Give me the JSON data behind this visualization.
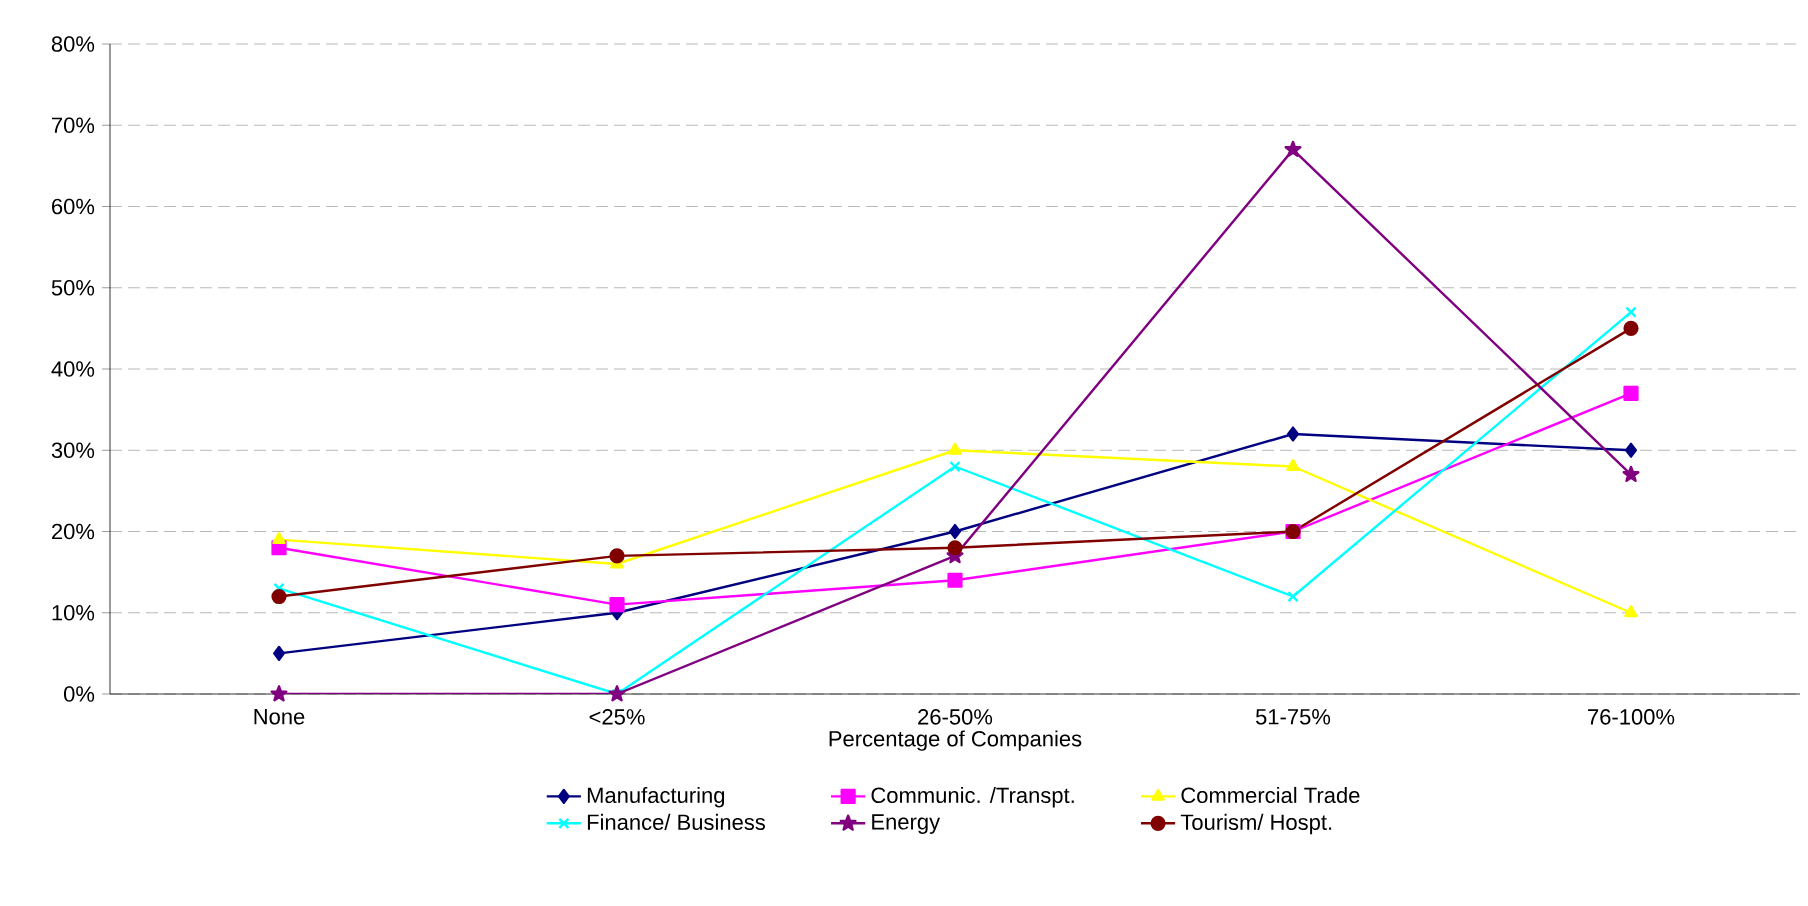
{
  "chart_data": {
    "type": "line",
    "xlabel": "Percentage of Companies",
    "categories": [
      "None",
      "<25%",
      "26-50%",
      "51-75%",
      "76-100%"
    ],
    "ylim": [
      0,
      0.8
    ],
    "yticks": [
      {
        "value": 0,
        "label": "0%"
      },
      {
        "value": 0.1,
        "label": "10%"
      },
      {
        "value": 0.2,
        "label": "20%"
      },
      {
        "value": 0.3,
        "label": "30%"
      },
      {
        "value": 0.4,
        "label": "40%"
      },
      {
        "value": 0.5,
        "label": "50%"
      },
      {
        "value": 0.6,
        "label": "60%"
      },
      {
        "value": 0.7,
        "label": "70%"
      },
      {
        "value": 0.8,
        "label": "80%"
      }
    ],
    "grid": "y",
    "legend": "bottom",
    "series": [
      {
        "name": "Manufacturing",
        "color": "#000080",
        "marker": "diamond",
        "values": [
          0.05,
          0.1,
          0.2,
          0.32,
          0.3
        ]
      },
      {
        "name": "Communic. /Transpt.",
        "color": "#ff00ff",
        "marker": "square",
        "values": [
          0.18,
          0.11,
          0.14,
          0.2,
          0.37
        ]
      },
      {
        "name": "Commercial Trade",
        "color": "#ffff00",
        "marker": "triangle",
        "values": [
          0.19,
          0.16,
          0.3,
          0.28,
          0.1
        ]
      },
      {
        "name": "Finance/ Business",
        "color": "#00ffff",
        "marker": "cross",
        "values": [
          0.13,
          0.0,
          0.28,
          0.12,
          0.47
        ]
      },
      {
        "name": "Energy",
        "color": "#800080",
        "marker": "star",
        "values": [
          0.0,
          0.0,
          0.17,
          0.67,
          0.27
        ]
      },
      {
        "name": "Tourism/ Hospt.",
        "color": "#800000",
        "marker": "circle",
        "values": [
          0.12,
          0.17,
          0.18,
          0.2,
          0.45
        ]
      }
    ]
  }
}
